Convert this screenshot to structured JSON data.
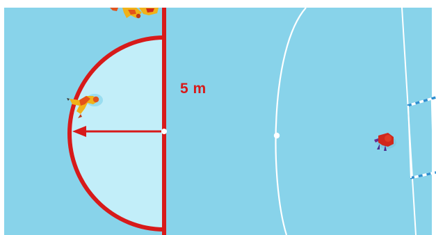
{
  "diagram": {
    "distance_label": "5 m",
    "colors": {
      "court": "#88d3ea",
      "court_edge": "#7ecbe3",
      "zone_fill": "#c2eef9",
      "marking_red": "#d71a1a",
      "white_line": "#ffffff",
      "goal_post": "#2f8fd0",
      "player_red": "#d0281c",
      "player_yellow": "#f0b21a"
    },
    "icons": [
      "player-top-view",
      "goal-frame-side",
      "arrow-left"
    ]
  }
}
